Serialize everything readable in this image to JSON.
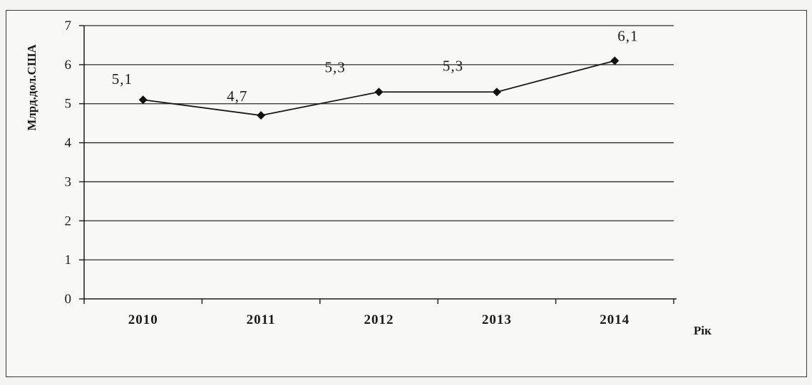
{
  "chart_data": {
    "type": "line",
    "categories": [
      "2010",
      "2011",
      "2012",
      "2013",
      "2014"
    ],
    "values": [
      5.1,
      4.7,
      5.3,
      5.3,
      6.1
    ],
    "data_labels": [
      "5,1",
      "4,7",
      "5,3",
      "5,3",
      "6,1"
    ],
    "xlabel": "Рік",
    "ylabel": "Млрд.дол.США",
    "ylim": [
      0,
      7
    ],
    "yticks": [
      "0",
      "1",
      "2",
      "3",
      "4",
      "5",
      "6",
      "7"
    ],
    "grid": true,
    "colors": {
      "line": "#1a1a1a",
      "grid": "#2a2a2a",
      "marker": "#111111"
    }
  }
}
